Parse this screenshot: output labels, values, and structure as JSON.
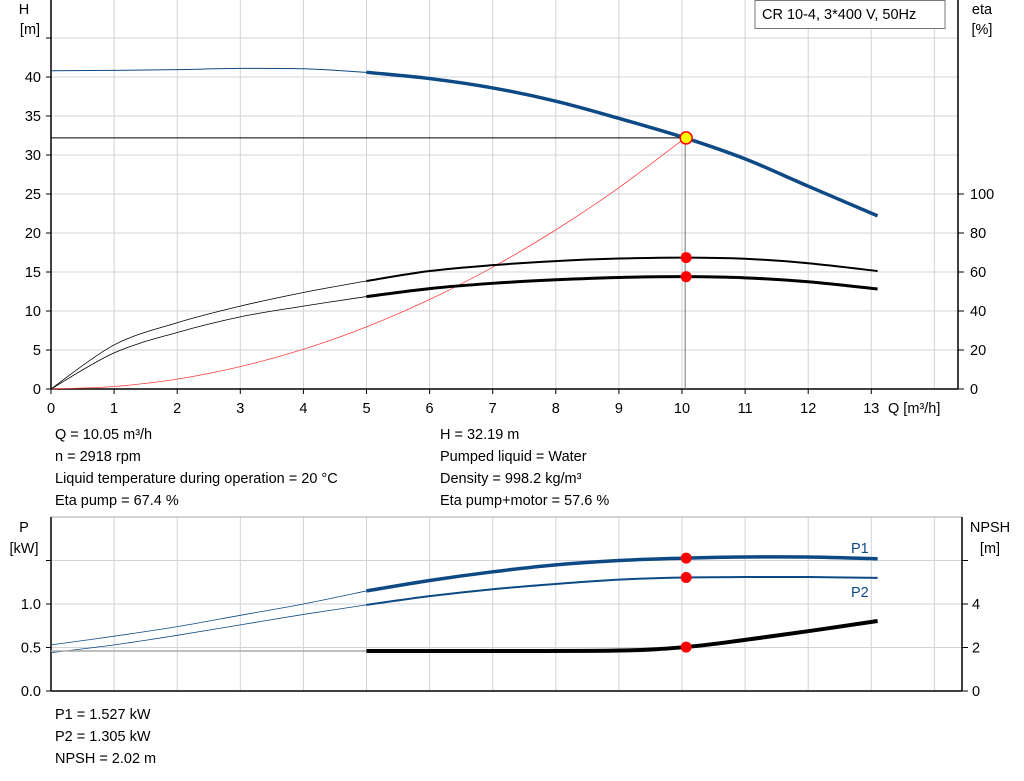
{
  "legend_box": "CR 10-4, 3*400 V, 50Hz",
  "colors": {
    "head": "#0d4a85",
    "eta": "#000000",
    "system": "#ff4040",
    "point": "#ff0000",
    "duty_point_fill": "#ffff00",
    "power": "#0d4a85",
    "npsh": "#000000",
    "grid": "#d0d3d8"
  },
  "info_top": {
    "left": [
      "Q = 10.05 m³/h",
      "n = 2918 rpm",
      "Liquid temperature during operation = 20 °C",
      "Eta pump = 67.4 %"
    ],
    "right": [
      "H = 32.19 m",
      "Pumped liquid = Water",
      "Density = 998.2 kg/m³",
      "Eta pump+motor = 57.6 %"
    ]
  },
  "info_bottom": [
    "P1 = 1.527 kW",
    "P2 = 1.305 kW",
    "NPSH = 2.02 m"
  ],
  "chart_data": [
    {
      "type": "line",
      "title": "",
      "xlabel": "Q [m³/h]",
      "ylabel_left": [
        "H",
        "[m]"
      ],
      "ylabel_right": [
        "eta",
        "[%]"
      ],
      "xlim": [
        0,
        14.4
      ],
      "ylim_left": [
        0,
        50
      ],
      "ylim_right": [
        0,
        256
      ],
      "grid": true,
      "x_ticks": [
        "0",
        "1",
        "2",
        "3",
        "4",
        "5",
        "6",
        "7",
        "8",
        "9",
        "10",
        "11",
        "12",
        "13"
      ],
      "y_left_ticks": [
        "0",
        "5",
        "10",
        "15",
        "20",
        "25",
        "30",
        "35",
        "40"
      ],
      "y_right_ticks": [
        "0",
        "20",
        "40",
        "60",
        "80",
        "100"
      ],
      "series": [
        {
          "key": "H",
          "axis": "left",
          "points": [
            [
              0,
              40.8
            ],
            [
              1,
              40.85
            ],
            [
              2,
              40.95
            ],
            [
              3,
              41.1
            ],
            [
              4,
              41.05
            ],
            [
              5,
              40.6
            ],
            [
              6,
              39.8
            ],
            [
              7,
              38.6
            ],
            [
              8,
              36.9
            ],
            [
              9,
              34.7
            ],
            [
              10.05,
              32.19
            ],
            [
              11,
              29.5
            ],
            [
              12,
              26.0
            ],
            [
              13.1,
              22.2
            ]
          ]
        },
        {
          "key": "eta_pump",
          "axis": "right",
          "points": [
            [
              0,
              0
            ],
            [
              1,
              22.6
            ],
            [
              2,
              34
            ],
            [
              3,
              42.5
            ],
            [
              4,
              49.5
            ],
            [
              5,
              55.4
            ],
            [
              6,
              60.5
            ],
            [
              7,
              63.5
            ],
            [
              8,
              65.6
            ],
            [
              9,
              66.9
            ],
            [
              10.05,
              67.4
            ],
            [
              11,
              66.8
            ],
            [
              12,
              64.5
            ],
            [
              13.1,
              60.5
            ]
          ]
        },
        {
          "key": "eta_pump_motor",
          "axis": "right",
          "points": [
            [
              0,
              0
            ],
            [
              1,
              18.5
            ],
            [
              2,
              29
            ],
            [
              3,
              37
            ],
            [
              4,
              42.5
            ],
            [
              5,
              47.4
            ],
            [
              6,
              51.5
            ],
            [
              7,
              54.2
            ],
            [
              8,
              56
            ],
            [
              9,
              57.2
            ],
            [
              10.05,
              57.6
            ],
            [
              11,
              57
            ],
            [
              12,
              55
            ],
            [
              13.1,
              51.3
            ]
          ]
        },
        {
          "key": "system",
          "axis": "left",
          "points": [
            [
              0,
              0
            ],
            [
              1,
              0.32
            ],
            [
              2,
              1.27
            ],
            [
              3,
              2.87
            ],
            [
              4,
              5.1
            ],
            [
              5,
              7.97
            ],
            [
              6,
              11.47
            ],
            [
              7,
              15.62
            ],
            [
              8,
              20.4
            ],
            [
              9,
              25.81
            ],
            [
              10.05,
              32.19
            ]
          ]
        }
      ],
      "duty_point": {
        "Q": 10.05,
        "H": 32.19,
        "eta_pump": 67.4,
        "eta_pump_motor": 57.6
      }
    },
    {
      "type": "line",
      "title": "",
      "ylabel_left": [
        "P",
        "[kW]"
      ],
      "ylabel_right": [
        "NPSH",
        "[m]"
      ],
      "xlim": [
        0,
        14.4
      ],
      "ylim_left": [
        0,
        2.0
      ],
      "ylim_right": [
        0,
        8
      ],
      "grid": true,
      "y_left_ticks": [
        "0.0",
        "0.5",
        "1.0"
      ],
      "y_right_ticks": [
        "0",
        "2",
        "4"
      ],
      "series": [
        {
          "key": "P1",
          "name": "P1",
          "axis": "left",
          "points": [
            [
              0,
              0.53
            ],
            [
              1,
              0.63
            ],
            [
              2,
              0.74
            ],
            [
              3,
              0.87
            ],
            [
              4,
              1.0
            ],
            [
              5,
              1.15
            ],
            [
              6,
              1.27
            ],
            [
              7,
              1.37
            ],
            [
              8,
              1.45
            ],
            [
              9,
              1.5
            ],
            [
              10.05,
              1.527
            ],
            [
              11,
              1.54
            ],
            [
              12,
              1.54
            ],
            [
              13.1,
              1.52
            ]
          ]
        },
        {
          "key": "P2",
          "name": "P2",
          "axis": "left",
          "points": [
            [
              0,
              0.44
            ],
            [
              1,
              0.53
            ],
            [
              2,
              0.64
            ],
            [
              3,
              0.76
            ],
            [
              4,
              0.88
            ],
            [
              5,
              0.99
            ],
            [
              6,
              1.09
            ],
            [
              7,
              1.17
            ],
            [
              8,
              1.23
            ],
            [
              9,
              1.28
            ],
            [
              10.05,
              1.305
            ],
            [
              11,
              1.31
            ],
            [
              12,
              1.31
            ],
            [
              13.1,
              1.3
            ]
          ]
        },
        {
          "key": "NPSH",
          "axis": "right",
          "points": [
            [
              0,
              1.84
            ],
            [
              2,
              1.84
            ],
            [
              4,
              1.84
            ],
            [
              5,
              1.84
            ],
            [
              7,
              1.84
            ],
            [
              9,
              1.86
            ],
            [
              10.05,
              2.02
            ],
            [
              11,
              2.35
            ],
            [
              12,
              2.75
            ],
            [
              13.1,
              3.22
            ]
          ]
        }
      ],
      "duty_point": {
        "P1": 1.527,
        "P2": 1.305,
        "NPSH": 2.02
      }
    }
  ]
}
